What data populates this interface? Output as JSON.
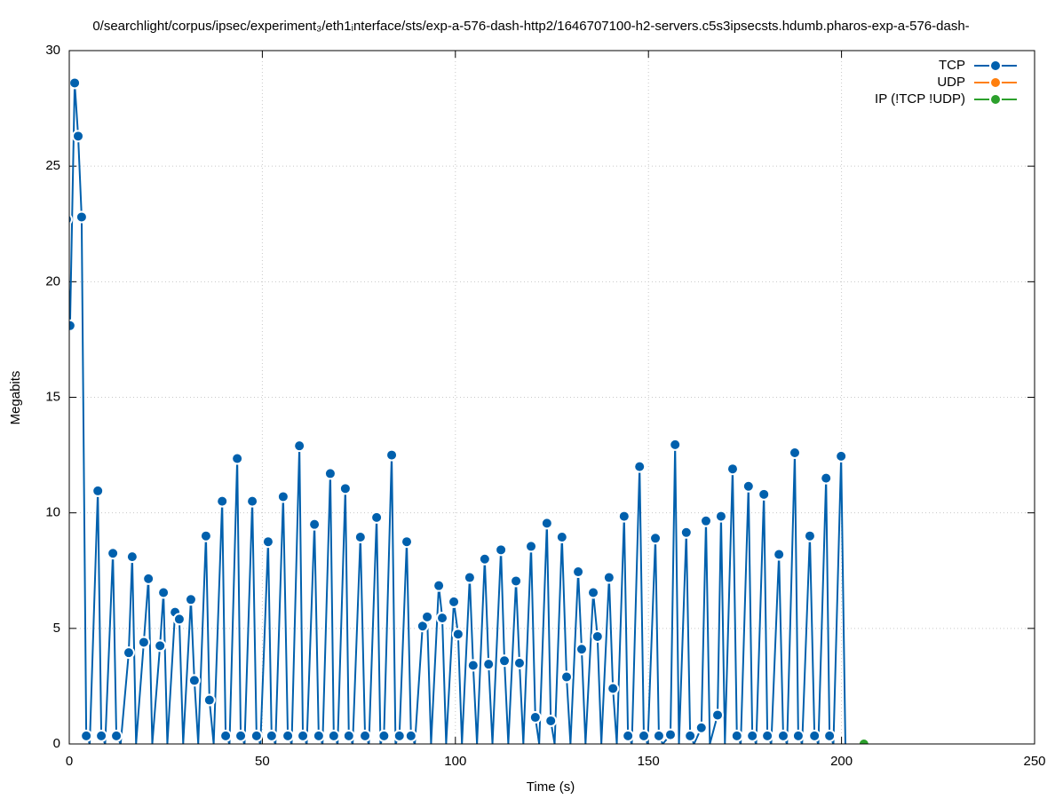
{
  "chart_data": {
    "type": "line",
    "title": "0/searchlight/corpus/ipsec/experiment₃/eth1ᵢnterface/sts/exp-a-576-dash-http2/1646707100-h2-servers.c5s3ipsecsts.hdumb.pharos-exp-a-576-dash-",
    "xlabel": "Time (s)",
    "ylabel": "Megabits",
    "xlim": [
      0,
      250
    ],
    "xticks": [
      0,
      50,
      100,
      150,
      200,
      250
    ],
    "ylim": [
      0,
      30
    ],
    "yticks": [
      0,
      5,
      10,
      15,
      20,
      25,
      30
    ],
    "grid": true,
    "legend": "upper right",
    "series": [
      {
        "name": "TCP",
        "color": "#0060ad",
        "x": [
          -0.7,
          0.2,
          1.4,
          2.3,
          3.2,
          4.4,
          5.3,
          7.4,
          8.3,
          9.3,
          11.3,
          12.2,
          13.3,
          15.4,
          16.3,
          17.3,
          19.3,
          20.5,
          21.5,
          23.5,
          24.4,
          25.4,
          27.4,
          28.5,
          29.5,
          31.5,
          32.4,
          33.4,
          35.4,
          36.3,
          37.4,
          39.6,
          40.5,
          41.5,
          43.5,
          44.4,
          45.4,
          47.4,
          48.5,
          49.5,
          51.5,
          52.4,
          53.4,
          55.4,
          56.6,
          57.6,
          59.6,
          60.5,
          61.5,
          63.5,
          64.6,
          65.6,
          67.6,
          68.5,
          69.5,
          71.5,
          72.4,
          73.4,
          75.4,
          76.6,
          77.6,
          79.6,
          80.6,
          81.5,
          83.5,
          84.5,
          85.5,
          87.4,
          88.5,
          89.5,
          91.5,
          92.7,
          93.7,
          95.7,
          96.6,
          97.6,
          99.6,
          100.7,
          101.7,
          103.7,
          104.6,
          105.6,
          107.6,
          108.6,
          109.6,
          111.8,
          112.7,
          113.7,
          115.7,
          116.6,
          117.6,
          119.6,
          120.7,
          121.7,
          123.7,
          124.7,
          125.7,
          127.6,
          128.8,
          129.8,
          131.8,
          132.7,
          133.7,
          135.7,
          136.8,
          137.8,
          139.8,
          140.8,
          141.8,
          143.7,
          144.7,
          145.7,
          147.7,
          148.8,
          149.8,
          151.8,
          152.7,
          153.7,
          155.7,
          156.9,
          157.9,
          159.8,
          160.8,
          161.8,
          163.7,
          164.9,
          165.9,
          167.9,
          168.8,
          169.8,
          171.8,
          172.9,
          173.9,
          175.9,
          176.9,
          177.9,
          179.9,
          180.8,
          181.8,
          183.8,
          184.9,
          185.9,
          187.9,
          188.8,
          189.8,
          191.8,
          193.0,
          194.0,
          196.0,
          196.9,
          197.9,
          199.9,
          201.0
        ],
        "values": [
          22.7,
          18.1,
          28.6,
          26.3,
          22.8,
          0.35,
          0,
          10.95,
          0.35,
          0,
          8.25,
          0.35,
          0,
          3.95,
          8.1,
          0,
          4.4,
          7.15,
          0,
          4.25,
          6.55,
          0,
          5.7,
          5.4,
          0,
          6.25,
          2.75,
          0,
          9.0,
          1.9,
          0,
          10.5,
          0.35,
          0,
          12.35,
          0.35,
          0,
          10.5,
          0.35,
          0,
          8.75,
          0.35,
          0,
          10.7,
          0.35,
          0,
          12.9,
          0.35,
          0,
          9.5,
          0.35,
          0,
          11.7,
          0.35,
          0,
          11.05,
          0.35,
          0,
          8.95,
          0.35,
          0,
          9.8,
          0,
          0.35,
          12.5,
          0,
          0.35,
          8.75,
          0.35,
          0,
          5.1,
          5.5,
          0,
          6.85,
          5.45,
          0,
          6.15,
          4.75,
          0,
          7.2,
          3.4,
          0,
          8.0,
          3.45,
          0,
          8.4,
          3.6,
          0,
          7.05,
          3.5,
          0,
          8.55,
          1.15,
          0,
          9.55,
          1.0,
          0,
          8.95,
          2.9,
          0,
          7.45,
          4.1,
          0,
          6.55,
          4.65,
          0,
          7.2,
          2.4,
          0,
          9.85,
          0.35,
          0,
          12.0,
          0.35,
          0,
          8.9,
          0.35,
          0,
          0.4,
          12.95,
          0,
          9.15,
          0.35,
          0,
          0.7,
          9.65,
          0,
          1.25,
          9.85,
          0,
          11.9,
          0.35,
          0,
          11.15,
          0.35,
          0,
          10.8,
          0.35,
          0,
          8.2,
          0.35,
          0,
          12.6,
          0.35,
          0,
          9.0,
          0.35,
          0,
          11.5,
          0.35,
          0,
          12.45,
          0
        ]
      },
      {
        "name": "UDP",
        "color": "#ff7f0e",
        "x": [],
        "values": []
      },
      {
        "name": "IP (!TCP  !UDP)",
        "color": "#2ca02c",
        "x": [
          205.8
        ],
        "values": [
          0
        ]
      }
    ]
  }
}
